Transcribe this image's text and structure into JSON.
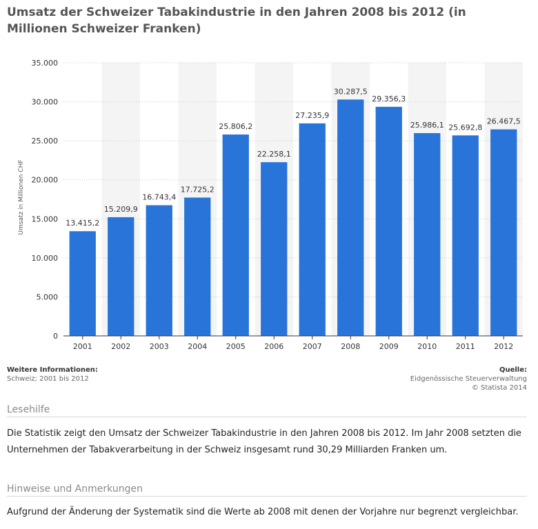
{
  "title": "Umsatz der Schweizer Tabakindustrie in den Jahren 2008 bis 2012 (in Millionen Schweizer Franken)",
  "chart_data": {
    "type": "bar",
    "title": "Umsatz der Schweizer Tabakindustrie in den Jahren 2008 bis 2012 (in Millionen Schweizer Franken)",
    "categories": [
      "2001",
      "2002",
      "2003",
      "2004",
      "2005",
      "2006",
      "2007",
      "2008",
      "2009",
      "2010",
      "2011",
      "2012"
    ],
    "values": [
      13415.2,
      15209.9,
      16743.4,
      17725.2,
      25806.2,
      22258.1,
      27235.9,
      30287.5,
      29356.3,
      25986.1,
      25692.8,
      26467.5
    ],
    "value_labels": [
      "13.415,2",
      "15.209,9",
      "16.743,4",
      "17.725,2",
      "25.806,2",
      "22.258,1",
      "27.235,9",
      "30.287,5",
      "29.356,3",
      "25.986,1",
      "25.692,8",
      "26.467,5"
    ],
    "xlabel": "",
    "ylabel": "Umsatz in Millionen CHF",
    "ylim": [
      0,
      35000
    ],
    "yticks": [
      0,
      5000,
      10000,
      15000,
      20000,
      25000,
      30000,
      35000
    ],
    "ytick_labels": [
      "0",
      "5.000",
      "10.000",
      "15.000",
      "20.000",
      "25.000",
      "30.000",
      "35.000"
    ],
    "grid": true,
    "bar_color": "#2874d9",
    "band_color": "#f4f4f4"
  },
  "meta": {
    "info_heading": "Weitere Informationen:",
    "info_text": "Schweiz; 2001 bis 2012",
    "source_heading": "Quelle:",
    "source_text": "Eidgenössische Steuerverwaltung",
    "copyright": "© Statista 2014"
  },
  "lesehilfe": {
    "heading": "Lesehilfe",
    "text": "Die Statistik zeigt den Umsatz der Schweizer Tabakindustrie in den Jahren 2008 bis 2012. Im Jahr 2008 setzten die Unternehmen der Tabakverarbeitung in der Schweiz insgesamt rund 30,29 Milliarden Franken um."
  },
  "hinweise": {
    "heading": "Hinweise und Anmerkungen",
    "text": "Aufgrund der Änderung der Systematik sind die Werte ab 2008 mit denen der Vorjahre nur begrenzt vergleichbar."
  }
}
